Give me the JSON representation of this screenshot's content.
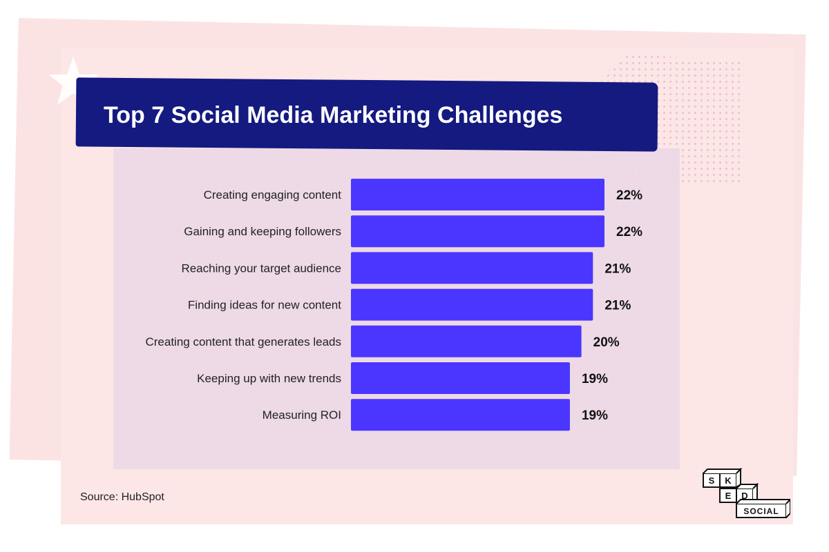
{
  "title": "Top 7 Social Media Marketing Challenges",
  "source": "Source: HubSpot",
  "logo": {
    "row1": [
      "S",
      "K"
    ],
    "row2": [
      "E",
      "D"
    ],
    "row3": "SOCIAL"
  },
  "colors": {
    "bar": "#4b36ff",
    "banner": "#141a80",
    "background": "#fce6e6",
    "plot_panel": "#ecd9e6"
  },
  "chart_data": {
    "type": "bar",
    "orientation": "horizontal",
    "categories": [
      "Creating engaging content",
      "Gaining and keeping followers",
      "Reaching your target audience",
      "Finding ideas for new content",
      "Creating content that generates leads",
      "Keeping up with new trends",
      "Measuring ROI"
    ],
    "values": [
      22,
      22,
      21,
      21,
      20,
      19,
      19
    ],
    "data_labels": [
      "22%",
      "22%",
      "21%",
      "21%",
      "20%",
      "19%",
      "19%"
    ],
    "title": "Top 7 Social Media Marketing Challenges",
    "unit": "%",
    "grid": false,
    "legend": "none"
  }
}
